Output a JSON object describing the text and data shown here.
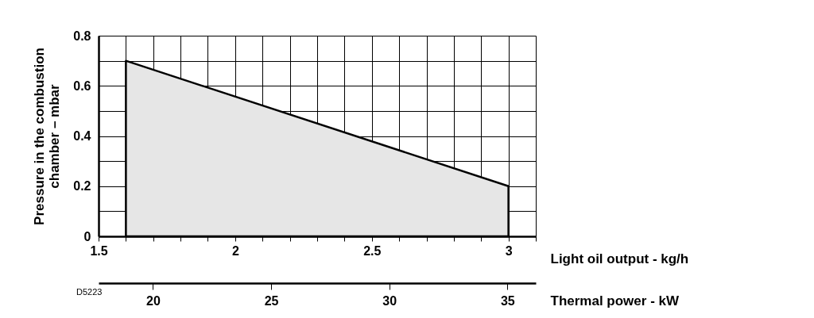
{
  "chart_data": {
    "type": "area",
    "xlabel": "Light oil output - kg/h",
    "ylabel": "Pressure in the combustion chamber – mbar",
    "x2label": "Thermal power - kW",
    "annotations": [
      "D5223"
    ],
    "series": [
      {
        "color": "#e6e6e6",
        "x": [
          1.6,
          3.0
        ],
        "values": [
          0.7,
          0.2
        ]
      }
    ],
    "xlim": [
      1.5,
      3.1
    ],
    "xticks": [
      1.5,
      {
        "value": 1.6,
        "label": null
      },
      {
        "value": 1.7,
        "label": null
      },
      {
        "value": 1.8,
        "label": null
      },
      {
        "value": 1.9,
        "label": null
      },
      2,
      {
        "value": 2.1,
        "label": null
      },
      {
        "value": 2.2,
        "label": null
      },
      {
        "value": 2.3,
        "label": null
      },
      {
        "value": 2.4,
        "label": null
      },
      2.5,
      {
        "value": 2.6,
        "label": null
      },
      {
        "value": 2.7,
        "label": null
      },
      {
        "value": 2.8,
        "label": null
      },
      {
        "value": 2.9,
        "label": null
      },
      3,
      {
        "value": 3.1,
        "label": null
      }
    ],
    "ylim": [
      0,
      0.8
    ],
    "yticks": [
      0,
      {
        "value": 0.1,
        "label": null
      },
      0.2,
      {
        "value": 0.3,
        "label": null
      },
      0.4,
      {
        "value": 0.5,
        "label": null
      },
      0.6,
      {
        "value": 0.7,
        "label": null
      },
      0.8
    ],
    "x2lim": [
      17.7,
      36.2
    ],
    "x2ticks": [
      20,
      25,
      30,
      35
    ],
    "grid": true
  }
}
